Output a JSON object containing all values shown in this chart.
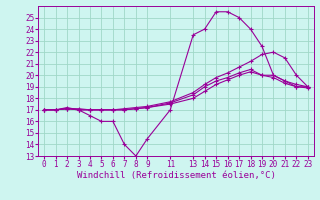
{
  "background_color": "#cef5f0",
  "grid_color": "#a0d8c8",
  "line_color": "#990099",
  "marker": "+",
  "markersize": 3,
  "linewidth": 0.8,
  "xlabel": "Windchill (Refroidissement éolien,°C)",
  "xlabel_fontsize": 6.5,
  "tick_fontsize": 5.5,
  "xlim": [
    -0.5,
    23.5
  ],
  "ylim": [
    13,
    26
  ],
  "yticks": [
    13,
    14,
    15,
    16,
    17,
    18,
    19,
    20,
    21,
    22,
    23,
    24,
    25
  ],
  "xtick_positions": [
    0,
    1,
    2,
    3,
    4,
    5,
    6,
    7,
    8,
    9,
    11,
    13,
    14,
    15,
    16,
    17,
    18,
    19,
    20,
    21,
    22,
    23
  ],
  "xtick_labels": [
    "0",
    "1",
    "2",
    "3",
    "4",
    "5",
    "6",
    "7",
    "8",
    "9",
    "11",
    "13",
    "14",
    "15",
    "16",
    "17",
    "18",
    "19",
    "20",
    "21",
    "22",
    "23"
  ],
  "series": [
    {
      "x": [
        0,
        1,
        2,
        3,
        4,
        5,
        6,
        7,
        8,
        9,
        11,
        13,
        14,
        15,
        16,
        17,
        18,
        19,
        20,
        21,
        22,
        23
      ],
      "y": [
        17,
        17,
        17.2,
        17,
        16.5,
        16,
        16,
        14,
        13,
        14.5,
        17,
        23.5,
        24,
        25.5,
        25.5,
        25,
        24,
        22.5,
        20,
        19.5,
        19,
        19
      ]
    },
    {
      "x": [
        0,
        1,
        2,
        3,
        4,
        5,
        6,
        7,
        8,
        9,
        11,
        13,
        14,
        15,
        16,
        17,
        18,
        19,
        20,
        21,
        22,
        23
      ],
      "y": [
        17,
        17,
        17.1,
        17.1,
        17.0,
        17.0,
        17.0,
        17.1,
        17.2,
        17.3,
        17.7,
        18.5,
        19.2,
        19.8,
        20.2,
        20.7,
        21.2,
        21.8,
        22.0,
        21.5,
        20.0,
        19.0
      ]
    },
    {
      "x": [
        0,
        1,
        2,
        3,
        4,
        5,
        6,
        7,
        8,
        9,
        11,
        13,
        14,
        15,
        16,
        17,
        18,
        19,
        20,
        21,
        22,
        23
      ],
      "y": [
        17,
        17,
        17.1,
        17.0,
        17.0,
        17.0,
        17.0,
        17.0,
        17.1,
        17.2,
        17.5,
        18.0,
        18.6,
        19.2,
        19.6,
        20.0,
        20.3,
        20.0,
        20.0,
        19.5,
        19.2,
        19.0
      ]
    },
    {
      "x": [
        0,
        1,
        2,
        3,
        4,
        5,
        6,
        7,
        8,
        9,
        11,
        13,
        14,
        15,
        16,
        17,
        18,
        19,
        20,
        21,
        22,
        23
      ],
      "y": [
        17,
        17,
        17.1,
        17.0,
        17.0,
        17.0,
        17.0,
        17.0,
        17.1,
        17.2,
        17.6,
        18.3,
        19.0,
        19.5,
        19.8,
        20.2,
        20.5,
        20.0,
        19.8,
        19.3,
        19.0,
        18.9
      ]
    }
  ]
}
